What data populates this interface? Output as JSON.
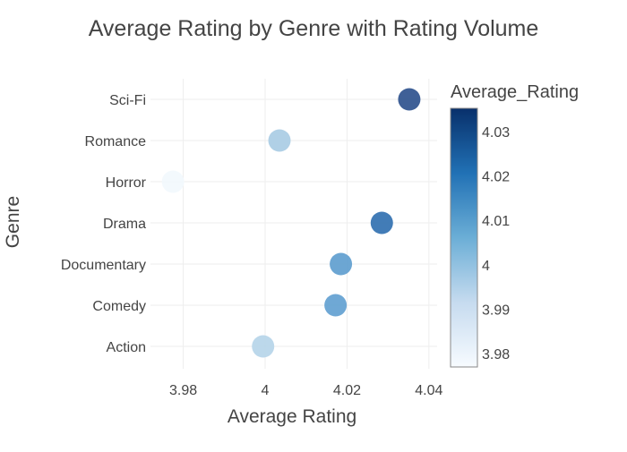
{
  "chart_data": {
    "type": "scatter",
    "title": "Average Rating by Genre with Rating Volume",
    "xlabel": "Average Rating",
    "ylabel": "Genre",
    "xlim": [
      3.972,
      4.042
    ],
    "x_ticks": [
      3.98,
      4.0,
      4.02,
      4.04
    ],
    "x_tick_labels": [
      "3.98",
      "4",
      "4.02",
      "4.04"
    ],
    "categories": [
      "Action",
      "Comedy",
      "Documentary",
      "Drama",
      "Horror",
      "Romance",
      "Sci-Fi"
    ],
    "series": [
      {
        "points": [
          {
            "genre": "Action",
            "x": 3.9995,
            "color": "#b5d4e9"
          },
          {
            "genre": "Comedy",
            "x": 4.0172,
            "color": "#5f9fd0"
          },
          {
            "genre": "Documentary",
            "x": 4.0185,
            "color": "#5c9cce"
          },
          {
            "genre": "Drama",
            "x": 4.0285,
            "color": "#2e6eaf"
          },
          {
            "genre": "Horror",
            "x": 3.9775,
            "color": "#f2f8fd"
          },
          {
            "genre": "Romance",
            "x": 4.0035,
            "color": "#a7cbe3"
          },
          {
            "genre": "Sci-Fi",
            "x": 4.0352,
            "color": "#2a4f8c"
          }
        ]
      }
    ],
    "colorbar": {
      "title": "Average_Rating",
      "range": [
        3.977,
        4.0352
      ],
      "ticks": [
        3.98,
        3.99,
        4.0,
        4.01,
        4.02,
        4.03
      ],
      "tick_labels": [
        "3.98",
        "3.99",
        "4",
        "4.01",
        "4.02",
        "4.03"
      ],
      "colors_low_to_high": [
        "#f7fbff",
        "#c6dbef",
        "#6baed6",
        "#2171b5",
        "#08306b"
      ]
    },
    "grid": true,
    "legend": "colorbar right"
  }
}
